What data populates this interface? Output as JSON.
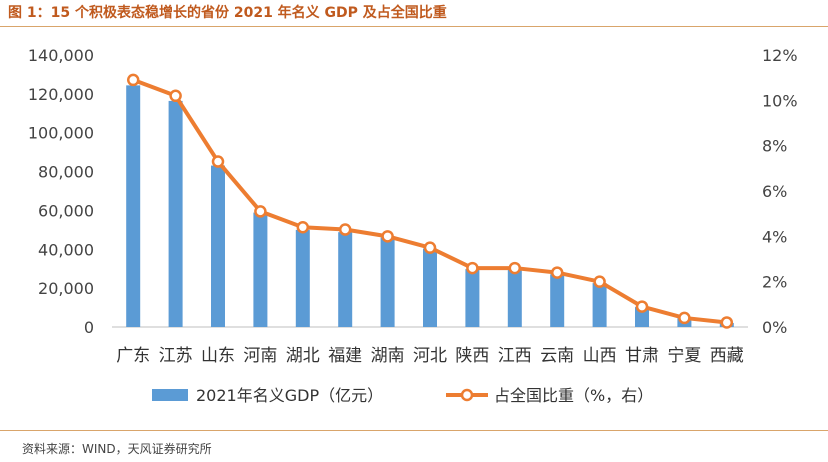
{
  "title": "图 1：15 个积极表态稳增长的省份 2021 年名义 GDP 及占全国比重",
  "source": "资料来源：WIND，天风证券研究所",
  "colors": {
    "bar": "#5b9bd5",
    "line": "#ed7d31",
    "title": "#c05a1e"
  },
  "chart_data": {
    "type": "bar",
    "categories": [
      "广东",
      "江苏",
      "山东",
      "河南",
      "湖北",
      "福建",
      "湖南",
      "河北",
      "陕西",
      "江西",
      "云南",
      "山西",
      "甘肃",
      "宁夏",
      "西藏"
    ],
    "series": [
      {
        "name": "2021年名义GDP（亿元）",
        "type": "bar",
        "axis": "left",
        "values": [
          124370,
          116360,
          83096,
          58887,
          50013,
          48810,
          46063,
          40391,
          29801,
          29620,
          27147,
          22590,
          10243,
          4522,
          2080
        ]
      },
      {
        "name": "占全国比重（%，右）",
        "type": "line",
        "axis": "right",
        "values": [
          10.9,
          10.2,
          7.3,
          5.1,
          4.4,
          4.3,
          4.0,
          3.5,
          2.6,
          2.6,
          2.4,
          2.0,
          0.9,
          0.4,
          0.2
        ]
      }
    ],
    "y_left": {
      "min": 0,
      "max": 140000,
      "ticks": [
        "0",
        "20,000",
        "40,000",
        "60,000",
        "80,000",
        "100,000",
        "120,000",
        "140,000"
      ]
    },
    "y_right": {
      "min": 0,
      "max": 12,
      "ticks": [
        "0%",
        "2%",
        "4%",
        "6%",
        "8%",
        "10%",
        "12%"
      ]
    },
    "grid": false,
    "legend_position": "bottom"
  }
}
